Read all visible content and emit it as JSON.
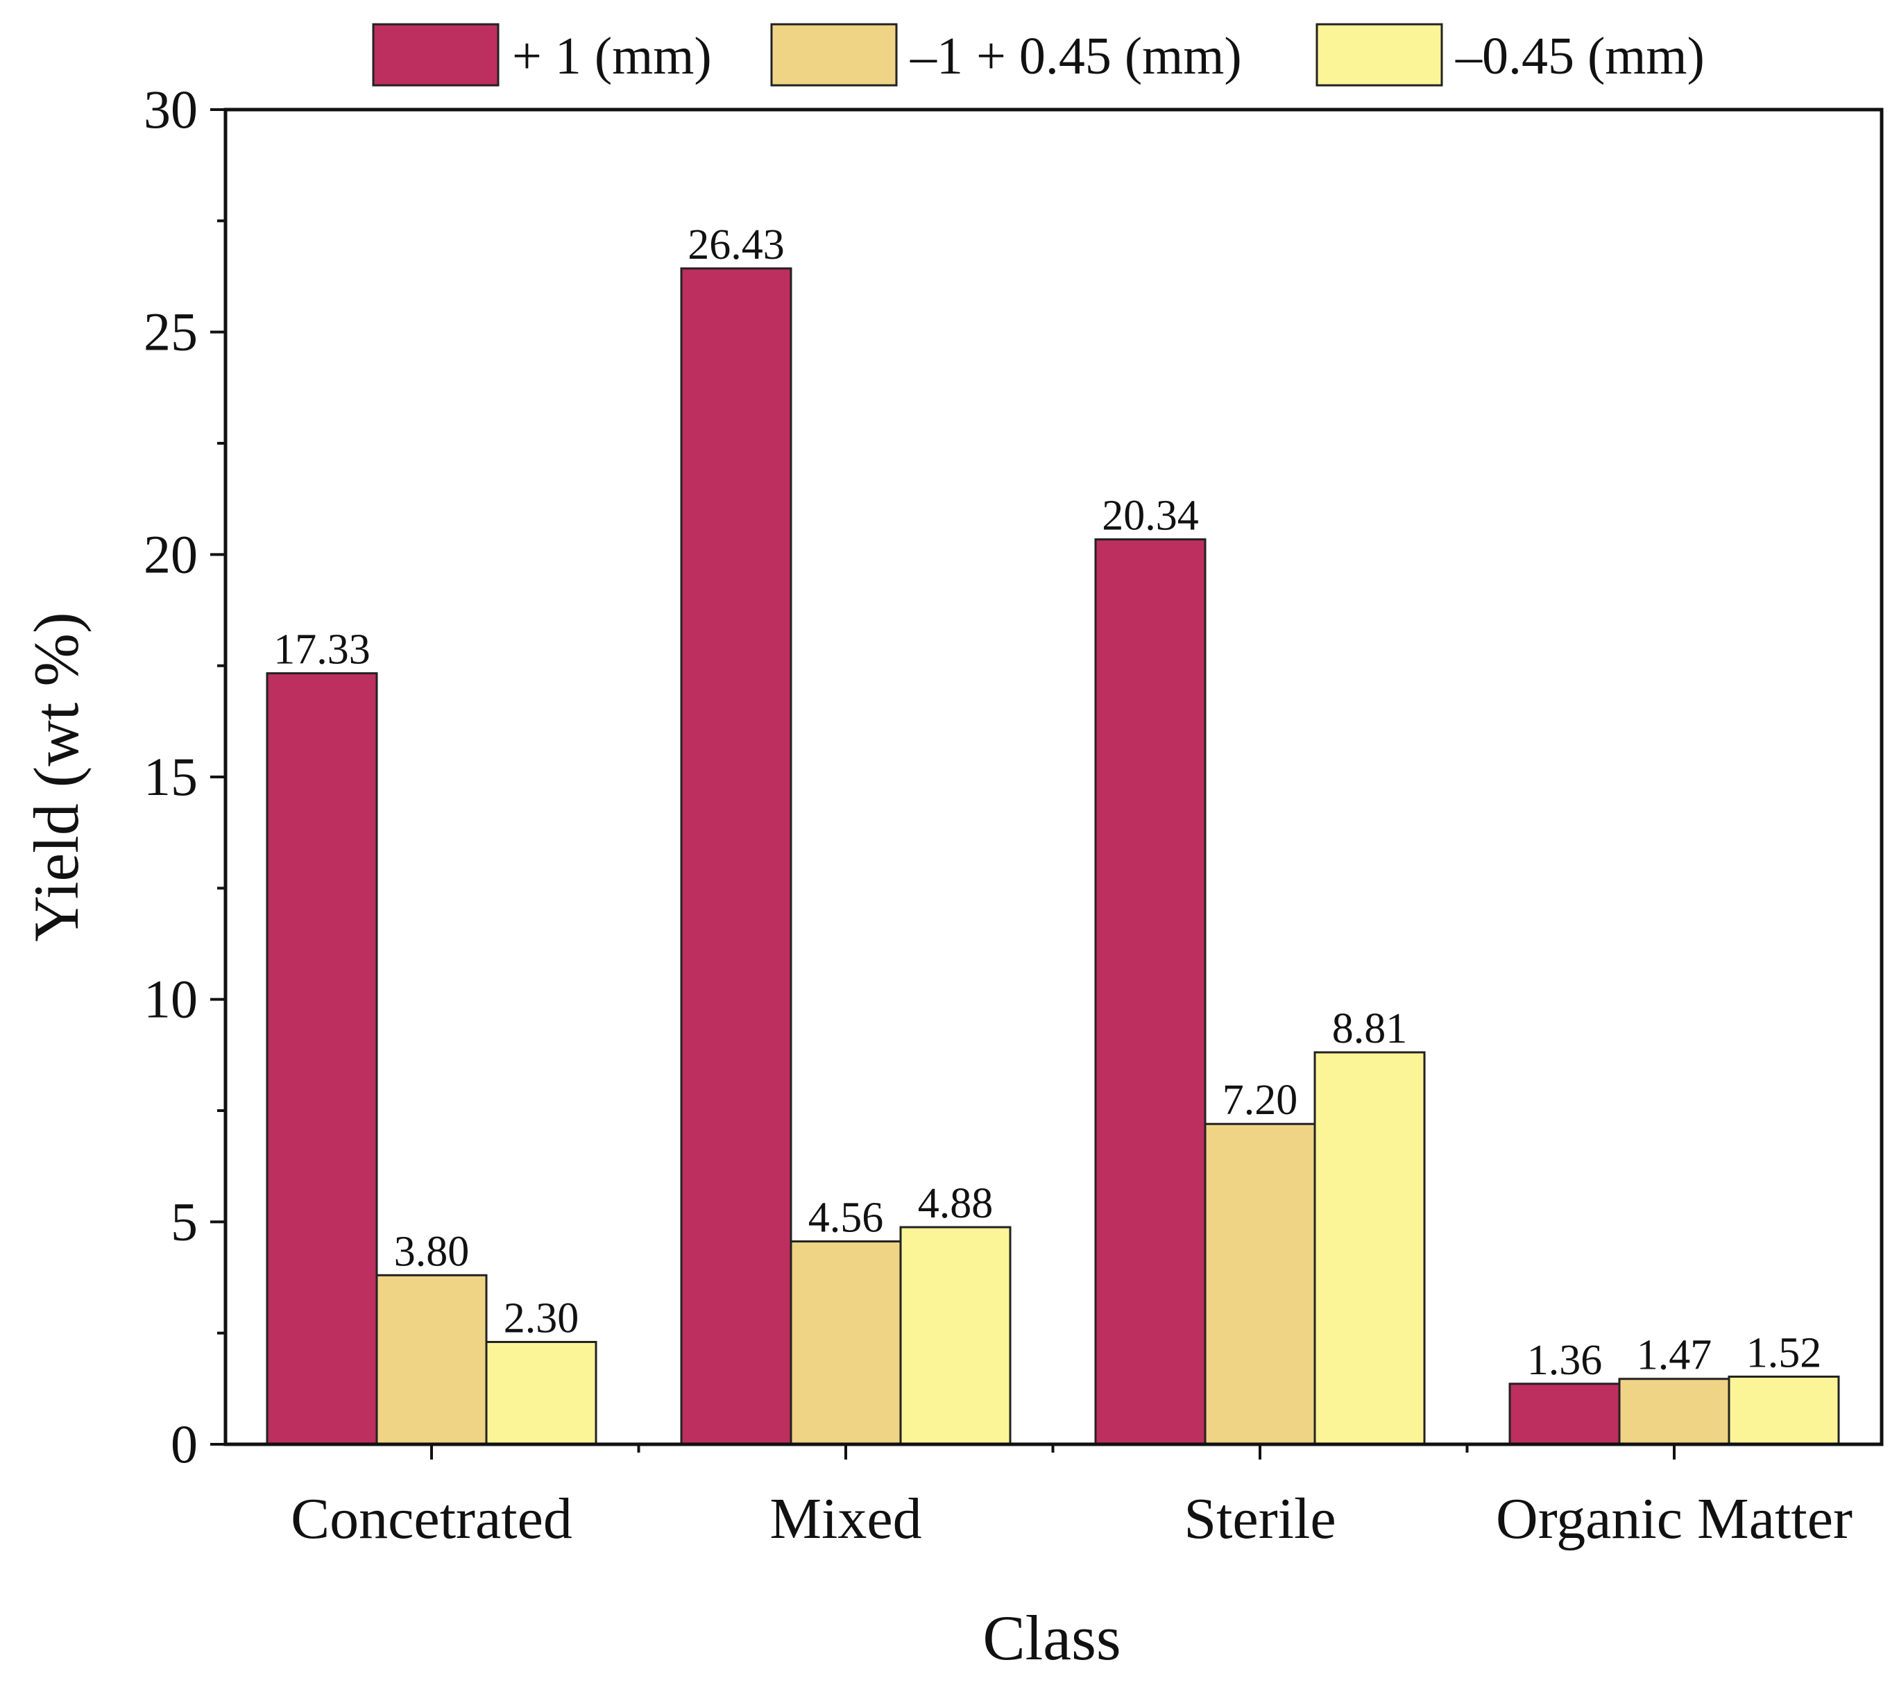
{
  "chart_data": {
    "type": "bar",
    "title": "",
    "xlabel": "Class",
    "ylabel": "Yield (wt %)",
    "ylim": [
      0,
      30
    ],
    "yticks": [
      0,
      5,
      10,
      15,
      20,
      25,
      30
    ],
    "categories": [
      "Concetrated",
      "Mixed",
      "Sterile",
      "Organic Matter"
    ],
    "series": [
      {
        "name": "+ 1 (mm)",
        "color": "#bd2f5e",
        "values": [
          17.33,
          26.43,
          20.34,
          1.36
        ],
        "labels": [
          "17.33",
          "26.43",
          "20.34",
          "1.36"
        ]
      },
      {
        "name": "–1 + 0.45 (mm)",
        "color": "#f0d486",
        "values": [
          3.8,
          4.56,
          7.2,
          1.47
        ],
        "labels": [
          "3.80",
          "4.56",
          "7.20",
          "1.47"
        ]
      },
      {
        "name": "–0.45 (mm)",
        "color": "#fcf598",
        "values": [
          2.3,
          4.88,
          8.81,
          1.52
        ],
        "labels": [
          "2.30",
          "4.88",
          "8.81",
          "1.52"
        ]
      }
    ],
    "grid": false,
    "legend_position": "top"
  }
}
